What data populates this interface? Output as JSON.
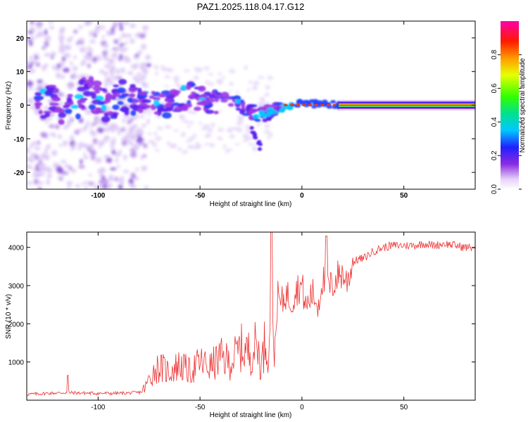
{
  "title": "PAZ1.2025.118.04.17.G12",
  "spectrogram": {
    "type": "heatmap",
    "xlabel": "Height of straight line (km)",
    "ylabel": "Frequency (Hz)",
    "xlim": [
      -135,
      85
    ],
    "ylim": [
      -25,
      25
    ],
    "xticks": [
      "-100",
      "-50",
      "0",
      "50"
    ],
    "yticks": [
      "20",
      "10",
      "0",
      "-10",
      "-20"
    ],
    "ridge": [
      {
        "x": -125,
        "f": 2
      },
      {
        "x": -115,
        "f": -1
      },
      {
        "x": -105,
        "f": 4
      },
      {
        "x": -95,
        "f": 0
      },
      {
        "x": -85,
        "f": 3
      },
      {
        "x": -75,
        "f": 1
      },
      {
        "x": -65,
        "f": 0
      },
      {
        "x": -55,
        "f": 3
      },
      {
        "x": -45,
        "f": 1
      },
      {
        "x": -35,
        "f": 2
      },
      {
        "x": -30,
        "f": 0
      },
      {
        "x": -25,
        "f": -2
      },
      {
        "x": -20,
        "f": -3
      },
      {
        "x": -15,
        "f": -2
      },
      {
        "x": -10,
        "f": -1
      },
      {
        "x": -5,
        "f": 0
      },
      {
        "x": 0,
        "f": 0.5
      },
      {
        "x": 10,
        "f": 0.5
      },
      {
        "x": 20,
        "f": 0
      },
      {
        "x": 85,
        "f": 0
      }
    ],
    "colorbar": {
      "label": "Normalized spectral amplitude",
      "ticks": [
        "0.0",
        "0.2",
        "0.4",
        "0.6",
        "0.8"
      ],
      "range": [
        0,
        1
      ]
    }
  },
  "chart_data": {
    "type": "line",
    "title": "PAZ1.2025.118.04.17.G12",
    "xlabel": "Height of straight line (km)",
    "ylabel": "SNR (10 * v/v)",
    "xlim": [
      -135,
      85
    ],
    "ylim": [
      0,
      4400
    ],
    "xticks": [
      "-100",
      "-50",
      "0",
      "50"
    ],
    "yticks": [
      "4000",
      "3000",
      "2000",
      "1000"
    ],
    "series": [
      {
        "color": "#ee3333",
        "x": [
          -135,
          -125,
          -115,
          -110,
          -100,
          -90,
          -80,
          -77,
          -75,
          -72,
          -70,
          -65,
          -60,
          -55,
          -50,
          -45,
          -40,
          -35,
          -30,
          -25,
          -22,
          -20,
          -18,
          -16,
          -15,
          -14,
          -13,
          -12,
          -10,
          -8,
          -5,
          -3,
          0,
          2,
          5,
          8,
          10,
          12,
          15,
          18,
          20,
          22,
          25,
          28,
          30,
          35,
          40,
          45,
          50,
          55,
          60,
          65,
          70,
          75,
          80,
          85
        ],
        "y": [
          150,
          180,
          200,
          190,
          180,
          180,
          200,
          250,
          450,
          650,
          700,
          600,
          750,
          600,
          800,
          700,
          900,
          800,
          1100,
          1000,
          1200,
          700,
          1300,
          1000,
          4000,
          1000,
          1600,
          2700,
          2500,
          2800,
          2600,
          2900,
          3000,
          2400,
          2800,
          2500,
          3200,
          2900,
          3000,
          3300,
          3300,
          3100,
          3600,
          3700,
          3700,
          3900,
          4000,
          4050,
          4050,
          4050,
          4100,
          4050,
          4100,
          4050,
          4000,
          4000
        ]
      }
    ]
  }
}
